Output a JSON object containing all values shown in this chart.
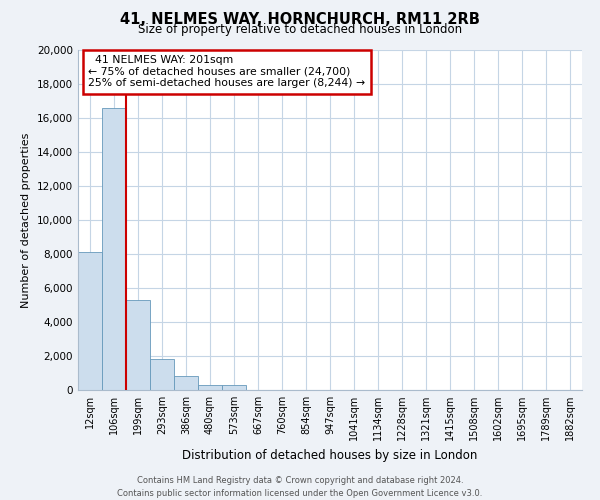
{
  "title_line1": "41, NELMES WAY, HORNCHURCH, RM11 2RB",
  "title_line2": "Size of property relative to detached houses in London",
  "xlabel": "Distribution of detached houses by size in London",
  "ylabel": "Number of detached properties",
  "bar_labels": [
    "12sqm",
    "106sqm",
    "199sqm",
    "293sqm",
    "386sqm",
    "480sqm",
    "573sqm",
    "667sqm",
    "760sqm",
    "854sqm",
    "947sqm",
    "1041sqm",
    "1134sqm",
    "1228sqm",
    "1321sqm",
    "1415sqm",
    "1508sqm",
    "1602sqm",
    "1695sqm",
    "1789sqm",
    "1882sqm"
  ],
  "bar_values": [
    8100,
    16600,
    5300,
    1800,
    800,
    300,
    300,
    0,
    0,
    0,
    0,
    0,
    0,
    0,
    0,
    0,
    0,
    0,
    0,
    0,
    0
  ],
  "bar_color": "#ccdded",
  "bar_edge_color": "#6699bb",
  "vline_color": "#cc0000",
  "annotation_line1": "  41 NELMES WAY: 201sqm  ",
  "annotation_line2": "← 75% of detached houses are smaller (24,700)",
  "annotation_line3": "25% of semi-detached houses are larger (8,244) →",
  "annotation_box_color": "#ffffff",
  "annotation_box_edge": "#cc0000",
  "ylim": [
    0,
    20000
  ],
  "yticks": [
    0,
    2000,
    4000,
    6000,
    8000,
    10000,
    12000,
    14000,
    16000,
    18000,
    20000
  ],
  "footer_line1": "Contains HM Land Registry data © Crown copyright and database right 2024.",
  "footer_line2": "Contains public sector information licensed under the Open Government Licence v3.0.",
  "bg_color": "#eef2f7",
  "plot_bg_color": "#ffffff",
  "grid_color": "#c5d5e5"
}
